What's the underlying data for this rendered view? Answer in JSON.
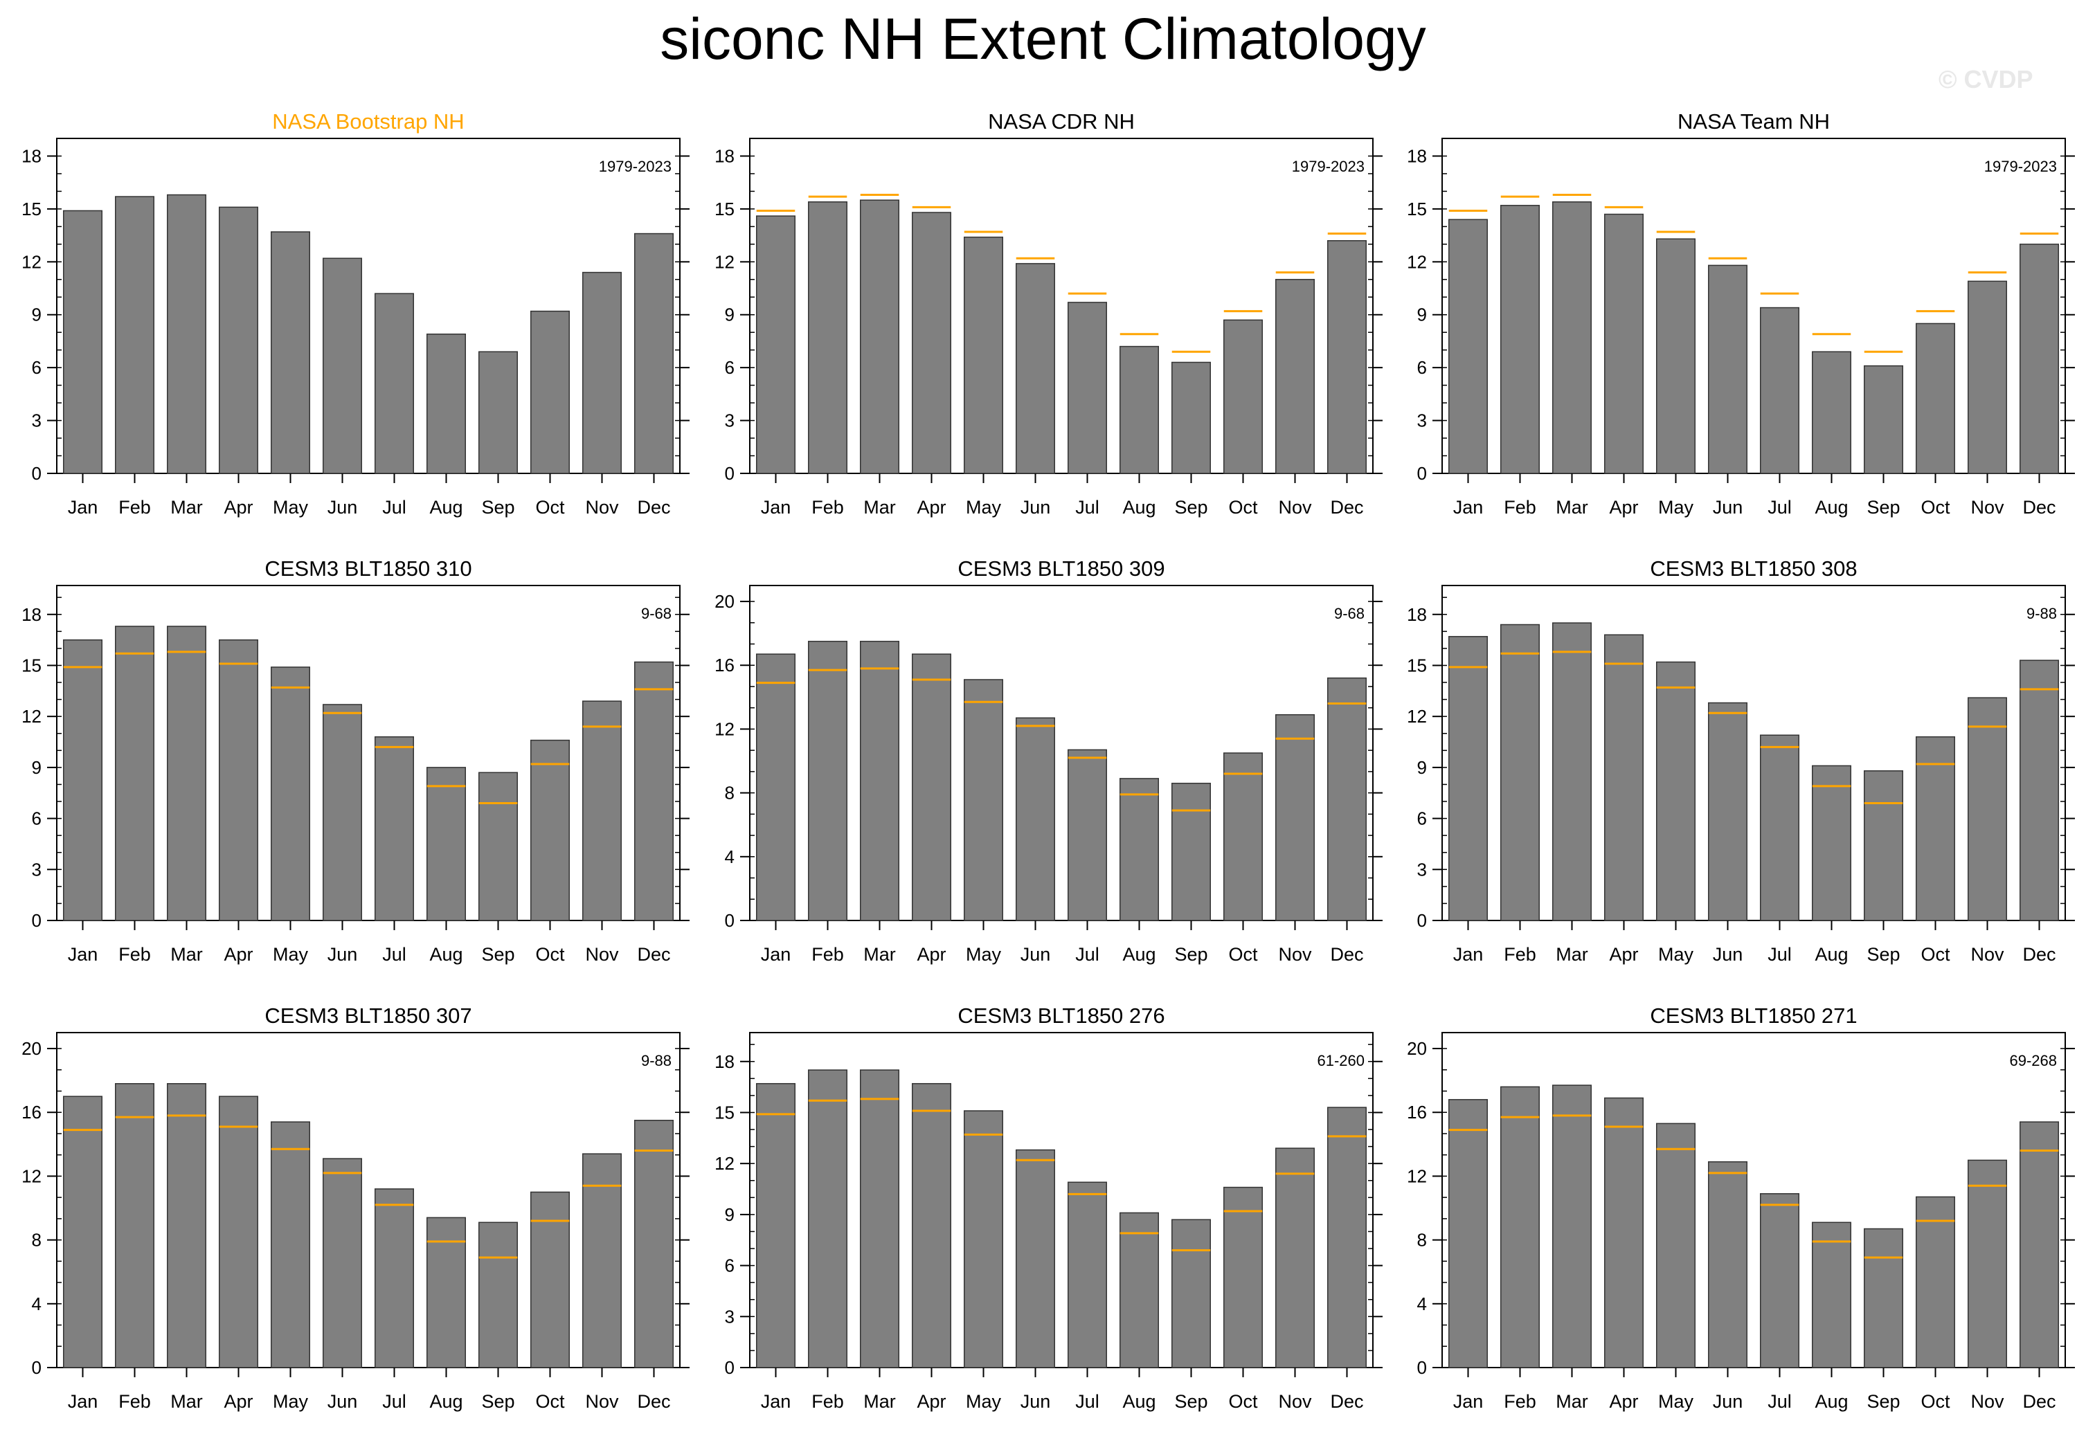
{
  "page": {
    "title": "siconc NH Extent Climatology",
    "watermark": "© CVDP"
  },
  "colors": {
    "bar": "#808080",
    "bar_edge": "#333333",
    "reference_line": "#ffa500",
    "highlight_title": "#ffa500",
    "axis": "#000000"
  },
  "chart_data": [
    {
      "type": "bar",
      "title": "NASA Bootstrap NH",
      "title_highlight": true,
      "period": "1979-2023",
      "categories": [
        "Jan",
        "Feb",
        "Mar",
        "Apr",
        "May",
        "Jun",
        "Jul",
        "Aug",
        "Sep",
        "Oct",
        "Nov",
        "Dec"
      ],
      "values": [
        14.9,
        15.7,
        15.8,
        15.1,
        13.7,
        12.2,
        10.2,
        7.9,
        6.9,
        9.2,
        11.4,
        13.6
      ],
      "reference": [],
      "ylim": [
        0,
        19
      ],
      "yticks": [
        0,
        3,
        6,
        9,
        12,
        15,
        18
      ]
    },
    {
      "type": "bar",
      "title": "NASA CDR NH",
      "title_highlight": false,
      "period": "1979-2023",
      "categories": [
        "Jan",
        "Feb",
        "Mar",
        "Apr",
        "May",
        "Jun",
        "Jul",
        "Aug",
        "Sep",
        "Oct",
        "Nov",
        "Dec"
      ],
      "values": [
        14.6,
        15.4,
        15.5,
        14.8,
        13.4,
        11.9,
        9.7,
        7.2,
        6.3,
        8.7,
        11.0,
        13.2
      ],
      "reference": [
        14.9,
        15.7,
        15.8,
        15.1,
        13.7,
        12.2,
        10.2,
        7.9,
        6.9,
        9.2,
        11.4,
        13.6
      ],
      "ylim": [
        0,
        19
      ],
      "yticks": [
        0,
        3,
        6,
        9,
        12,
        15,
        18
      ]
    },
    {
      "type": "bar",
      "title": "NASA Team NH",
      "title_highlight": false,
      "period": "1979-2023",
      "categories": [
        "Jan",
        "Feb",
        "Mar",
        "Apr",
        "May",
        "Jun",
        "Jul",
        "Aug",
        "Sep",
        "Oct",
        "Nov",
        "Dec"
      ],
      "values": [
        14.4,
        15.2,
        15.4,
        14.7,
        13.3,
        11.8,
        9.4,
        6.9,
        6.1,
        8.5,
        10.9,
        13.0
      ],
      "reference": [
        14.9,
        15.7,
        15.8,
        15.1,
        13.7,
        12.2,
        10.2,
        7.9,
        6.9,
        9.2,
        11.4,
        13.6
      ],
      "ylim": [
        0,
        19
      ],
      "yticks": [
        0,
        3,
        6,
        9,
        12,
        15,
        18
      ]
    },
    {
      "type": "bar",
      "title": "CESM3 BLT1850 310",
      "title_highlight": false,
      "period": "9-68",
      "categories": [
        "Jan",
        "Feb",
        "Mar",
        "Apr",
        "May",
        "Jun",
        "Jul",
        "Aug",
        "Sep",
        "Oct",
        "Nov",
        "Dec"
      ],
      "values": [
        16.5,
        17.3,
        17.3,
        16.5,
        14.9,
        12.7,
        10.8,
        9.0,
        8.7,
        10.6,
        12.9,
        15.2
      ],
      "reference": [
        14.9,
        15.7,
        15.8,
        15.1,
        13.7,
        12.2,
        10.2,
        7.9,
        6.9,
        9.2,
        11.4,
        13.6
      ],
      "ylim": [
        0,
        19.7
      ],
      "yticks": [
        0,
        3,
        6,
        9,
        12,
        15,
        18
      ]
    },
    {
      "type": "bar",
      "title": "CESM3 BLT1850 309",
      "title_highlight": false,
      "period": "9-68",
      "categories": [
        "Jan",
        "Feb",
        "Mar",
        "Apr",
        "May",
        "Jun",
        "Jul",
        "Aug",
        "Sep",
        "Oct",
        "Nov",
        "Dec"
      ],
      "values": [
        16.7,
        17.5,
        17.5,
        16.7,
        15.1,
        12.7,
        10.7,
        8.9,
        8.6,
        10.5,
        12.9,
        15.2
      ],
      "reference": [
        14.9,
        15.7,
        15.8,
        15.1,
        13.7,
        12.2,
        10.2,
        7.9,
        6.9,
        9.2,
        11.4,
        13.6
      ],
      "ylim": [
        0,
        21
      ],
      "yticks": [
        0,
        4,
        8,
        12,
        16,
        20
      ]
    },
    {
      "type": "bar",
      "title": "CESM3 BLT1850 308",
      "title_highlight": false,
      "period": "9-88",
      "categories": [
        "Jan",
        "Feb",
        "Mar",
        "Apr",
        "May",
        "Jun",
        "Jul",
        "Aug",
        "Sep",
        "Oct",
        "Nov",
        "Dec"
      ],
      "values": [
        16.7,
        17.4,
        17.5,
        16.8,
        15.2,
        12.8,
        10.9,
        9.1,
        8.8,
        10.8,
        13.1,
        15.3
      ],
      "reference": [
        14.9,
        15.7,
        15.8,
        15.1,
        13.7,
        12.2,
        10.2,
        7.9,
        6.9,
        9.2,
        11.4,
        13.6
      ],
      "ylim": [
        0,
        19.7
      ],
      "yticks": [
        0,
        3,
        6,
        9,
        12,
        15,
        18
      ]
    },
    {
      "type": "bar",
      "title": "CESM3 BLT1850 307",
      "title_highlight": false,
      "period": "9-88",
      "categories": [
        "Jan",
        "Feb",
        "Mar",
        "Apr",
        "May",
        "Jun",
        "Jul",
        "Aug",
        "Sep",
        "Oct",
        "Nov",
        "Dec"
      ],
      "values": [
        17.0,
        17.8,
        17.8,
        17.0,
        15.4,
        13.1,
        11.2,
        9.4,
        9.1,
        11.0,
        13.4,
        15.5
      ],
      "reference": [
        14.9,
        15.7,
        15.8,
        15.1,
        13.7,
        12.2,
        10.2,
        7.9,
        6.9,
        9.2,
        11.4,
        13.6
      ],
      "ylim": [
        0,
        21
      ],
      "yticks": [
        0,
        4,
        8,
        12,
        16,
        20
      ]
    },
    {
      "type": "bar",
      "title": "CESM3 BLT1850 276",
      "title_highlight": false,
      "period": "61-260",
      "categories": [
        "Jan",
        "Feb",
        "Mar",
        "Apr",
        "May",
        "Jun",
        "Jul",
        "Aug",
        "Sep",
        "Oct",
        "Nov",
        "Dec"
      ],
      "values": [
        16.7,
        17.5,
        17.5,
        16.7,
        15.1,
        12.8,
        10.9,
        9.1,
        8.7,
        10.6,
        12.9,
        15.3
      ],
      "reference": [
        14.9,
        15.7,
        15.8,
        15.1,
        13.7,
        12.2,
        10.2,
        7.9,
        6.9,
        9.2,
        11.4,
        13.6
      ],
      "ylim": [
        0,
        19.7
      ],
      "yticks": [
        0,
        3,
        6,
        9,
        12,
        15,
        18
      ]
    },
    {
      "type": "bar",
      "title": "CESM3 BLT1850 271",
      "title_highlight": false,
      "period": "69-268",
      "categories": [
        "Jan",
        "Feb",
        "Mar",
        "Apr",
        "May",
        "Jun",
        "Jul",
        "Aug",
        "Sep",
        "Oct",
        "Nov",
        "Dec"
      ],
      "values": [
        16.8,
        17.6,
        17.7,
        16.9,
        15.3,
        12.9,
        10.9,
        9.1,
        8.7,
        10.7,
        13.0,
        15.4
      ],
      "reference": [
        14.9,
        15.7,
        15.8,
        15.1,
        13.7,
        12.2,
        10.2,
        7.9,
        6.9,
        9.2,
        11.4,
        13.6
      ],
      "ylim": [
        0,
        21
      ],
      "yticks": [
        0,
        4,
        8,
        12,
        16,
        20
      ]
    }
  ]
}
